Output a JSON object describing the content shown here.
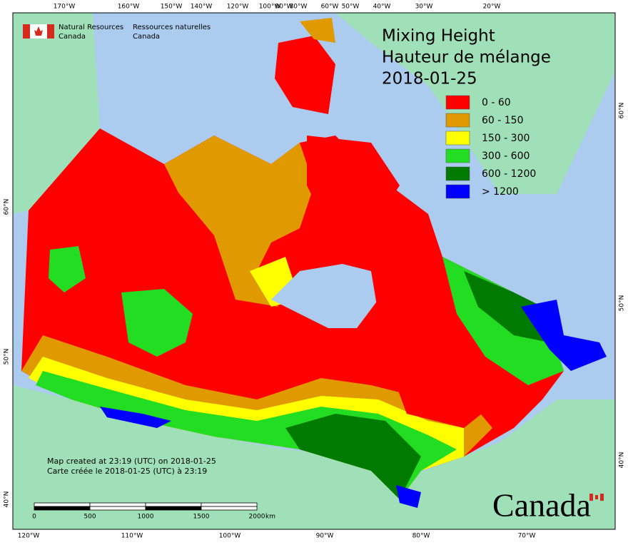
{
  "title": {
    "lines": [
      "Mixing Height",
      "Hauteur de mélange",
      "2018-01-25"
    ]
  },
  "legend": {
    "items": [
      {
        "label": "0 - 60",
        "color": "#ff0000"
      },
      {
        "label": "60 - 150",
        "color": "#e09a00"
      },
      {
        "label": "150 - 300",
        "color": "#ffff00"
      },
      {
        "label": "300 - 600",
        "color": "#22dd22"
      },
      {
        "label": "600 - 1200",
        "color": "#007a00"
      },
      {
        "label": "> 1200",
        "color": "#0000ff"
      }
    ]
  },
  "agency": {
    "en": [
      "Natural Resources",
      "Canada"
    ],
    "fr": [
      "Ressources naturelles",
      "Canada"
    ]
  },
  "graticule": {
    "top": [
      "170°W",
      "160°W",
      "150°W",
      "140°W",
      "120°W",
      "100°W",
      "90°W",
      "80°W",
      "60°W",
      "50°W",
      "40°W",
      "30°W",
      "20°W"
    ],
    "bottom": [
      "120°W",
      "110°W",
      "100°W",
      "90°W",
      "80°W",
      "70°W"
    ],
    "left": [
      "60°N",
      "50°N",
      "40°N"
    ],
    "right": [
      "60°N",
      "50°N",
      "40°N"
    ]
  },
  "scale_bar": {
    "ticks": [
      "0",
      "500",
      "1000",
      "1500",
      "2000"
    ],
    "unit": "km"
  },
  "credits": [
    "Map created at 23:19 (UTC) on 2018-01-25",
    "Carte créée le 2018-01-25 (UTC) à 23:19"
  ],
  "wordmark": "Canada"
}
